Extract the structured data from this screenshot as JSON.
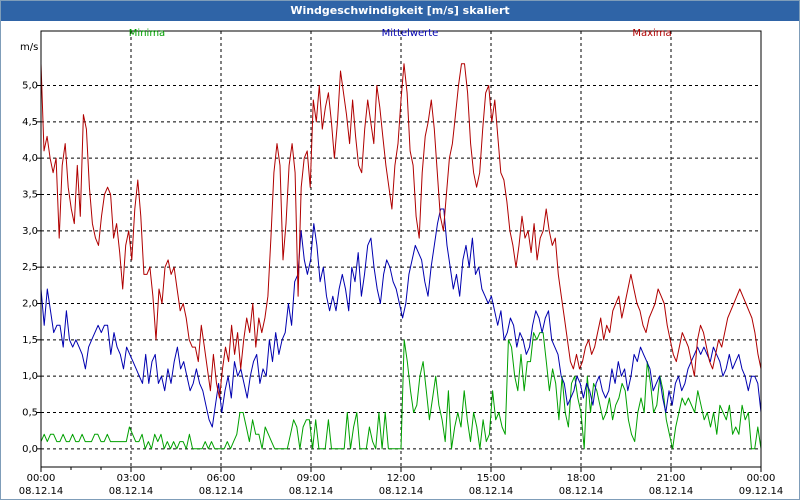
{
  "window": {
    "title": "Windgeschwindigkeit [m/s] skaliert"
  },
  "chart_data": {
    "type": "line",
    "title": "Windgeschwindigkeit [m/s] skaliert",
    "ylabel": "m/s",
    "xlabel": "",
    "ylim": [
      -0.25,
      5.75
    ],
    "xlim": [
      0,
      24
    ],
    "y_ticks": [
      "0,0",
      "0,5",
      "1,0",
      "1,5",
      "2,0",
      "2,5",
      "3,0",
      "3,5",
      "4,0",
      "4,5",
      "5,0"
    ],
    "x_ticks": [
      {
        "time": "00:00",
        "date": "08.12.14"
      },
      {
        "time": "03:00",
        "date": "08.12.14"
      },
      {
        "time": "06:00",
        "date": "08.12.14"
      },
      {
        "time": "09:00",
        "date": "08.12.14"
      },
      {
        "time": "12:00",
        "date": "08.12.14"
      },
      {
        "time": "15:00",
        "date": "08.12.14"
      },
      {
        "time": "18:00",
        "date": "08.12.14"
      },
      {
        "time": "21:00",
        "date": "08.12.14"
      },
      {
        "time": "00:00",
        "date": "09.12.14"
      }
    ],
    "grid": true,
    "legend": "top",
    "series": [
      {
        "name": "Minima",
        "color": "#00a000",
        "values": [
          0.1,
          0.2,
          0.1,
          0.2,
          0.2,
          0.1,
          0.1,
          0.2,
          0.1,
          0.1,
          0.2,
          0.1,
          0.1,
          0.2,
          0.1,
          0.1,
          0.1,
          0.2,
          0.2,
          0.1,
          0.1,
          0.2,
          0.1,
          0.1,
          0.1,
          0.1,
          0.1,
          0.1,
          0.3,
          0.2,
          0.1,
          0.1,
          0.2,
          0.0,
          0.1,
          0.0,
          0.2,
          0.1,
          0.2,
          0.0,
          0.1,
          0.0,
          0.1,
          0.0,
          0.1,
          0.1,
          0.0,
          0.2,
          0.0,
          0.0,
          0.0,
          0.0,
          0.1,
          0.0,
          0.1,
          0.0,
          0.0,
          0.0,
          0.0,
          0.1,
          0.0,
          0.1,
          0.2,
          0.5,
          0.5,
          0.3,
          0.1,
          0.4,
          0.2,
          0.2,
          0.0,
          0.3,
          0.2,
          0.1,
          0.0,
          0.0,
          0.0,
          0.0,
          0.0,
          0.2,
          0.4,
          0.3,
          0.0,
          0.3,
          0.4,
          0.4,
          0.0,
          0.4,
          0.0,
          0.0,
          0.0,
          0.4,
          0.0,
          0.0,
          0.0,
          0.0,
          0.0,
          0.5,
          0.0,
          0.3,
          0.5,
          0.0,
          0.0,
          0.0,
          0.3,
          0.1,
          0.0,
          0.5,
          0.0,
          0.5,
          0.0,
          0.0,
          0.0,
          0.0,
          0.0,
          1.5,
          1.2,
          0.8,
          0.5,
          0.6,
          1.0,
          1.2,
          0.8,
          0.4,
          0.7,
          1.0,
          0.6,
          0.4,
          0.1,
          0.8,
          0.0,
          0.3,
          0.5,
          0.3,
          0.8,
          0.4,
          0.1,
          0.5,
          0.3,
          0.0,
          0.4,
          0.1,
          0.2,
          0.8,
          0.4,
          0.5,
          0.3,
          0.2,
          1.5,
          1.4,
          1.0,
          0.8,
          1.3,
          0.8,
          1.2,
          1.2,
          1.6,
          1.5,
          1.6,
          1.6,
          1.2,
          0.8,
          1.1,
          0.9,
          0.4,
          1.0,
          0.5,
          0.3,
          0.9,
          1.0,
          0.7,
          0.5,
          0.0,
          1.0,
          0.5,
          0.9,
          0.8,
          0.6,
          0.4,
          0.5,
          0.7,
          0.4,
          0.6,
          0.7,
          0.9,
          0.8,
          0.4,
          0.2,
          0.1,
          0.5,
          0.7,
          0.5,
          1.2,
          0.9,
          0.5,
          0.6,
          1.0,
          0.8,
          0.4,
          0.2,
          0.0,
          0.3,
          0.5,
          0.7,
          0.6,
          0.7,
          0.6,
          0.5,
          0.8,
          0.6,
          0.4,
          0.5,
          0.3,
          0.5,
          0.2,
          0.6,
          0.5,
          0.4,
          0.6,
          0.2,
          0.3,
          0.2,
          0.6,
          0.4,
          0.5,
          0.0,
          0.0,
          0.3,
          0.0
        ]
      },
      {
        "name": "Mittelwerte",
        "color": "#0000b0",
        "values": [
          2.2,
          1.7,
          2.2,
          1.9,
          1.6,
          1.7,
          1.7,
          1.4,
          1.9,
          1.5,
          1.4,
          1.5,
          1.4,
          1.3,
          1.1,
          1.4,
          1.5,
          1.6,
          1.7,
          1.6,
          1.7,
          1.7,
          1.3,
          1.6,
          1.4,
          1.3,
          1.1,
          1.4,
          1.3,
          1.2,
          1.1,
          1.0,
          0.9,
          1.3,
          0.9,
          1.2,
          1.3,
          0.9,
          1.0,
          0.8,
          1.1,
          0.9,
          1.2,
          1.4,
          1.1,
          1.2,
          1.0,
          0.8,
          0.9,
          1.1,
          0.9,
          0.8,
          0.6,
          0.4,
          0.3,
          0.6,
          0.9,
          0.5,
          0.8,
          1.0,
          0.7,
          1.2,
          1.0,
          1.1,
          0.9,
          0.7,
          1.0,
          1.2,
          1.3,
          0.9,
          1.1,
          1.0,
          1.5,
          1.2,
          1.6,
          1.3,
          1.5,
          1.6,
          2.0,
          1.7,
          2.3,
          2.4,
          3.0,
          2.6,
          2.4,
          2.6,
          3.1,
          2.8,
          2.3,
          2.5,
          2.1,
          1.9,
          2.1,
          1.9,
          2.2,
          2.4,
          2.2,
          1.9,
          2.5,
          2.3,
          2.7,
          2.1,
          2.4,
          2.8,
          2.9,
          2.5,
          2.2,
          2.0,
          2.4,
          2.6,
          2.5,
          2.3,
          2.2,
          2.0,
          1.8,
          2.0,
          2.4,
          2.6,
          2.8,
          2.7,
          2.6,
          2.3,
          2.1,
          2.5,
          2.8,
          3.1,
          3.3,
          3.3,
          2.8,
          2.5,
          2.2,
          2.4,
          2.1,
          2.6,
          2.8,
          2.5,
          2.9,
          2.4,
          2.5,
          2.2,
          2.1,
          2.0,
          2.1,
          1.9,
          1.7,
          1.9,
          1.5,
          1.6,
          1.8,
          1.7,
          1.4,
          1.6,
          1.5,
          1.3,
          1.4,
          1.7,
          1.9,
          1.8,
          1.6,
          1.8,
          1.9,
          1.5,
          1.4,
          1.3,
          1.0,
          0.9,
          0.6,
          0.7,
          0.8,
          1.0,
          0.9,
          0.7,
          0.9,
          0.8,
          0.6,
          0.9,
          1.0,
          0.8,
          0.7,
          0.8,
          1.1,
          0.9,
          1.2,
          1.0,
          1.1,
          0.8,
          1.0,
          1.3,
          1.2,
          1.4,
          1.3,
          1.2,
          1.1,
          0.8,
          0.9,
          1.0,
          0.7,
          0.5,
          0.8,
          0.6,
          0.9,
          1.0,
          0.8,
          0.9,
          1.1,
          1.2,
          1.3,
          1.4,
          1.3,
          1.4,
          1.3,
          1.2,
          1.4,
          1.3,
          1.2,
          1.0,
          1.1,
          1.3,
          1.1,
          1.2,
          1.3,
          1.1,
          1.0,
          0.8,
          1.0,
          1.0,
          0.9,
          0.5
        ]
      },
      {
        "name": "Maxima",
        "color": "#b00000",
        "values": [
          5.3,
          4.1,
          4.3,
          4.0,
          3.8,
          4.0,
          2.9,
          3.9,
          4.2,
          3.6,
          3.3,
          3.1,
          3.9,
          3.2,
          4.6,
          4.4,
          3.6,
          3.1,
          2.9,
          2.8,
          3.2,
          3.5,
          3.6,
          3.5,
          2.9,
          3.1,
          2.7,
          2.2,
          2.8,
          3.0,
          2.6,
          3.3,
          3.7,
          3.2,
          2.4,
          2.4,
          2.5,
          2.1,
          1.5,
          2.2,
          2.0,
          2.5,
          2.6,
          2.4,
          2.5,
          2.2,
          1.9,
          2.0,
          1.8,
          1.5,
          1.4,
          1.4,
          1.2,
          1.7,
          1.4,
          1.1,
          0.8,
          1.3,
          0.9,
          0.7,
          1.1,
          1.4,
          1.2,
          1.7,
          1.3,
          1.6,
          1.1,
          1.5,
          1.8,
          1.6,
          2.0,
          1.4,
          1.8,
          1.6,
          1.8,
          2.1,
          2.9,
          3.8,
          4.2,
          3.9,
          2.6,
          3.1,
          3.9,
          4.2,
          3.8,
          2.1,
          3.6,
          4.0,
          4.1,
          3.6,
          4.8,
          4.5,
          5.0,
          4.4,
          4.7,
          4.9,
          4.5,
          4.0,
          4.5,
          5.2,
          4.9,
          4.6,
          4.2,
          4.8,
          4.3,
          3.9,
          3.8,
          4.4,
          4.8,
          4.5,
          4.2,
          5.0,
          4.7,
          4.3,
          3.9,
          3.6,
          3.3,
          3.9,
          4.2,
          4.8,
          5.3,
          4.9,
          4.1,
          3.9,
          3.2,
          2.9,
          3.8,
          4.3,
          4.5,
          4.8,
          4.4,
          3.8,
          3.2,
          3.0,
          3.5,
          4.0,
          4.2,
          4.6,
          5.0,
          5.3,
          5.3,
          4.9,
          4.2,
          3.8,
          3.6,
          3.8,
          4.4,
          4.9,
          5.0,
          4.5,
          4.8,
          4.3,
          3.8,
          3.7,
          3.4,
          3.0,
          2.8,
          2.5,
          2.8,
          3.2,
          2.9,
          3.0,
          2.7,
          3.1,
          2.6,
          2.9,
          3.0,
          3.3,
          3.0,
          2.8,
          2.9,
          2.4,
          2.1,
          1.8,
          1.5,
          1.2,
          1.1,
          1.3,
          1.1,
          1.2,
          1.4,
          1.5,
          1.3,
          1.4,
          1.6,
          1.8,
          1.5,
          1.7,
          1.6,
          1.9,
          2.0,
          2.1,
          1.8,
          2.0,
          2.2,
          2.4,
          2.2,
          2.0,
          1.9,
          1.7,
          1.6,
          1.8,
          1.9,
          2.0,
          2.2,
          2.1,
          2.0,
          1.7,
          1.5,
          1.3,
          1.2,
          1.4,
          1.6,
          1.5,
          1.4,
          1.2,
          1.0,
          1.5,
          1.7,
          1.6,
          1.4,
          1.2,
          1.1,
          1.3,
          1.5,
          1.4,
          1.6,
          1.8,
          1.9,
          2.0,
          2.1,
          2.2,
          2.1,
          2.0,
          1.9,
          1.8,
          1.6,
          1.3,
          1.1
        ]
      }
    ]
  }
}
